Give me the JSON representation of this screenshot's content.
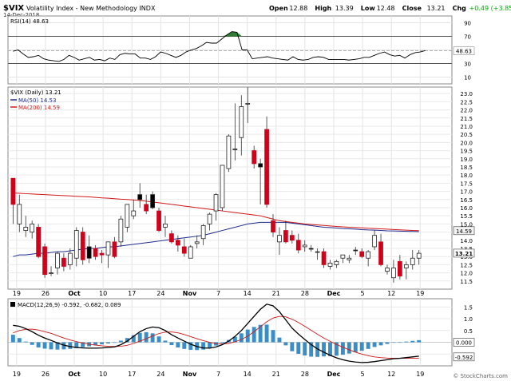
{
  "header": {
    "symbol": "$VIX",
    "name": "Volatility Index - New Methodology",
    "exchange": "INDX",
    "date": "14-Dec-2018",
    "watermark": "© StockCharts.com",
    "quote": {
      "open_label": "Open",
      "open": "12.88",
      "high_label": "High",
      "high": "13.39",
      "low_label": "Low",
      "low": "12.48",
      "close_label": "Close",
      "close": "13.21",
      "chg_label": "Chg",
      "chg": "+0.49 (+3.85%)",
      "chg_color": "#00aa00"
    }
  },
  "colors": {
    "up_candle": "#ffffff",
    "down_candle": "#d0021b",
    "black_candle": "#000000",
    "ma50": "#1f2a8c",
    "ma200": "#d01818",
    "macd_line": "#000000",
    "signal_line": "#d01818",
    "histogram": "#3a8ec8",
    "rsi_line": "#000000",
    "rsi_overbought_fill": "#2e7d32"
  },
  "chart_data": [
    {
      "id": "rsi",
      "type": "line",
      "legend": "RSI(14) 48.63",
      "current_label": "48.63",
      "yticks": [
        "90",
        "70",
        "50",
        "30",
        "10"
      ],
      "ylim": [
        0,
        100
      ],
      "levels": [
        30,
        70
      ],
      "series": [
        {
          "values": [
            48,
            50,
            44,
            39,
            40,
            42,
            37,
            35,
            34,
            33,
            36,
            42,
            39,
            35,
            37,
            39,
            35,
            36,
            34,
            38,
            36,
            43,
            45,
            44,
            44,
            38,
            38,
            36,
            40,
            47,
            45,
            42,
            39,
            42,
            47,
            50,
            52,
            56,
            61,
            60,
            60,
            66,
            72,
            77,
            76,
            50,
            50,
            37,
            38,
            39,
            40,
            38,
            37,
            36,
            35,
            40,
            36,
            35,
            36,
            39,
            40,
            39,
            36,
            36,
            36,
            36,
            35,
            36,
            37,
            39,
            39,
            42,
            45,
            47,
            43,
            41,
            42,
            38,
            43,
            46,
            47,
            49
          ]
        }
      ]
    },
    {
      "id": "price",
      "type": "candlestick",
      "legend": {
        "price": "$VIX (Daily) 13.21",
        "ma50": "MA(50) 14.53",
        "ma200": "MA(200) 14.59"
      },
      "ylim": [
        11,
        23.4
      ],
      "yticks": [
        "23.0",
        "22.5",
        "22.0",
        "21.5",
        "21.0",
        "20.5",
        "20.0",
        "19.5",
        "19.0",
        "18.5",
        "18.0",
        "17.5",
        "17.0",
        "16.5",
        "16.0",
        "15.5",
        "15.0",
        "14.5",
        "14.0",
        "13.5",
        "13.0",
        "12.5",
        "12.0",
        "11.5"
      ],
      "price_badges": [
        "14.59",
        "13.21"
      ],
      "x": [
        "19",
        "26",
        "Oct",
        "10",
        "17",
        "24",
        "Nov",
        "7",
        "14",
        "21",
        "28",
        "Dec",
        "5",
        "12",
        "19"
      ],
      "candles": [
        {
          "o": 16.2,
          "h": 17.8,
          "l": 15.0,
          "c": 17.8,
          "k": "down"
        },
        {
          "o": 16.2,
          "h": 16.8,
          "l": 14.5,
          "c": 15.0,
          "k": "up"
        },
        {
          "o": 14.8,
          "h": 15.5,
          "l": 14.2,
          "c": 14.6,
          "k": "up"
        },
        {
          "o": 15.0,
          "h": 15.2,
          "l": 14.1,
          "c": 14.5,
          "k": "up"
        },
        {
          "o": 14.8,
          "h": 15.0,
          "l": 12.9,
          "c": 13.0,
          "k": "down"
        },
        {
          "o": 13.6,
          "h": 13.8,
          "l": 11.7,
          "c": 11.9,
          "k": "down"
        },
        {
          "o": 12.0,
          "h": 12.4,
          "l": 11.8,
          "c": 12.0,
          "k": "up"
        },
        {
          "o": 12.3,
          "h": 13.3,
          "l": 11.9,
          "c": 13.2,
          "k": "up"
        },
        {
          "o": 12.9,
          "h": 13.2,
          "l": 12.1,
          "c": 12.4,
          "k": "down"
        },
        {
          "o": 12.5,
          "h": 13.5,
          "l": 12.2,
          "c": 13.2,
          "k": "up"
        },
        {
          "o": 12.9,
          "h": 14.8,
          "l": 12.4,
          "c": 14.6,
          "k": "up"
        },
        {
          "o": 14.5,
          "h": 14.8,
          "l": 12.5,
          "c": 12.8,
          "k": "down"
        },
        {
          "o": 12.9,
          "h": 14.3,
          "l": 12.6,
          "c": 13.6,
          "k": "black"
        },
        {
          "o": 13.5,
          "h": 13.7,
          "l": 12.8,
          "c": 13.0,
          "k": "down"
        },
        {
          "o": 13.1,
          "h": 13.4,
          "l": 12.6,
          "c": 13.2,
          "k": "down"
        },
        {
          "o": 13.1,
          "h": 13.9,
          "l": 12.3,
          "c": 13.9,
          "k": "up"
        },
        {
          "o": 13.9,
          "h": 14.2,
          "l": 12.9,
          "c": 13.0,
          "k": "down"
        },
        {
          "o": 13.9,
          "h": 15.5,
          "l": 13.6,
          "c": 15.3,
          "k": "up"
        },
        {
          "o": 14.8,
          "h": 16.2,
          "l": 14.5,
          "c": 16.2,
          "k": "up"
        },
        {
          "o": 15.5,
          "h": 16.5,
          "l": 15.3,
          "c": 15.8,
          "k": "up"
        },
        {
          "o": 16.5,
          "h": 17.5,
          "l": 16.0,
          "c": 16.8,
          "k": "black"
        },
        {
          "o": 16.2,
          "h": 16.8,
          "l": 15.6,
          "c": 15.8,
          "k": "down"
        },
        {
          "o": 16.8,
          "h": 17.0,
          "l": 15.9,
          "c": 16.0,
          "k": "black"
        },
        {
          "o": 15.8,
          "h": 16.0,
          "l": 14.5,
          "c": 14.6,
          "k": "down"
        },
        {
          "o": 14.8,
          "h": 15.5,
          "l": 14.2,
          "c": 15.0,
          "k": "up"
        },
        {
          "o": 14.4,
          "h": 14.6,
          "l": 13.8,
          "c": 13.9,
          "k": "down"
        },
        {
          "o": 14.0,
          "h": 14.3,
          "l": 13.3,
          "c": 13.7,
          "k": "down"
        },
        {
          "o": 13.6,
          "h": 14.1,
          "l": 13.0,
          "c": 13.2,
          "k": "down"
        },
        {
          "o": 12.9,
          "h": 13.7,
          "l": 12.9,
          "c": 13.6,
          "k": "up"
        },
        {
          "o": 13.8,
          "h": 14.3,
          "l": 13.5,
          "c": 13.9,
          "k": "up"
        },
        {
          "o": 14.1,
          "h": 15.0,
          "l": 13.7,
          "c": 14.9,
          "k": "up"
        },
        {
          "o": 15.0,
          "h": 15.7,
          "l": 14.6,
          "c": 15.6,
          "k": "up"
        },
        {
          "o": 15.8,
          "h": 16.9,
          "l": 15.2,
          "c": 16.8,
          "k": "up"
        },
        {
          "o": 16.0,
          "h": 18.6,
          "l": 15.8,
          "c": 18.6,
          "k": "up"
        },
        {
          "o": 18.4,
          "h": 20.5,
          "l": 18.2,
          "c": 20.4,
          "k": "up"
        },
        {
          "o": 19.6,
          "h": 22.4,
          "l": 18.9,
          "c": 19.6,
          "k": "up"
        },
        {
          "o": 20.3,
          "h": 22.9,
          "l": 19.2,
          "c": 22.2,
          "k": "up"
        },
        {
          "o": 22.4,
          "h": 23.4,
          "l": 21.2,
          "c": 22.4,
          "k": "up"
        },
        {
          "o": 19.5,
          "h": 19.8,
          "l": 18.4,
          "c": 18.7,
          "k": "down"
        },
        {
          "o": 18.7,
          "h": 19.0,
          "l": 16.2,
          "c": 18.5,
          "k": "black"
        },
        {
          "o": 20.8,
          "h": 21.6,
          "l": 16.0,
          "c": 16.2,
          "k": "down"
        },
        {
          "o": 15.2,
          "h": 15.6,
          "l": 14.2,
          "c": 14.5,
          "k": "down"
        },
        {
          "o": 13.9,
          "h": 14.8,
          "l": 13.1,
          "c": 14.3,
          "k": "up"
        },
        {
          "o": 14.6,
          "h": 15.2,
          "l": 13.8,
          "c": 13.9,
          "k": "down"
        },
        {
          "o": 14.3,
          "h": 14.6,
          "l": 13.8,
          "c": 14.0,
          "k": "down"
        },
        {
          "o": 14.0,
          "h": 14.4,
          "l": 13.2,
          "c": 13.4,
          "k": "down"
        },
        {
          "o": 13.6,
          "h": 14.0,
          "l": 13.3,
          "c": 13.7,
          "k": "up"
        },
        {
          "o": 13.5,
          "h": 13.7,
          "l": 13.3,
          "c": 13.5,
          "k": "black"
        },
        {
          "o": 13.3,
          "h": 13.5,
          "l": 12.8,
          "c": 13.3,
          "k": "up"
        },
        {
          "o": 13.3,
          "h": 13.5,
          "l": 12.3,
          "c": 12.5,
          "k": "down"
        },
        {
          "o": 12.4,
          "h": 12.8,
          "l": 12.2,
          "c": 12.6,
          "k": "up"
        },
        {
          "o": 12.5,
          "h": 12.8,
          "l": 12.3,
          "c": 12.7,
          "k": "up"
        },
        {
          "o": 12.9,
          "h": 13.1,
          "l": 12.6,
          "c": 13.1,
          "k": "up"
        },
        {
          "o": 12.8,
          "h": 13.1,
          "l": 12.6,
          "c": 12.9,
          "k": "up"
        },
        {
          "o": 13.4,
          "h": 13.6,
          "l": 13.1,
          "c": 13.4,
          "k": "black"
        },
        {
          "o": 13.3,
          "h": 13.5,
          "l": 12.9,
          "c": 13.0,
          "k": "down"
        },
        {
          "o": 12.9,
          "h": 13.4,
          "l": 12.4,
          "c": 13.3,
          "k": "up"
        },
        {
          "o": 13.6,
          "h": 14.6,
          "l": 13.4,
          "c": 14.3,
          "k": "up"
        },
        {
          "o": 13.9,
          "h": 14.4,
          "l": 12.4,
          "c": 12.5,
          "k": "down"
        },
        {
          "o": 12.1,
          "h": 12.5,
          "l": 11.9,
          "c": 12.3,
          "k": "up"
        },
        {
          "o": 12.3,
          "h": 12.8,
          "l": 11.4,
          "c": 11.7,
          "k": "up"
        },
        {
          "o": 12.7,
          "h": 13.1,
          "l": 11.6,
          "c": 11.8,
          "k": "down"
        },
        {
          "o": 12.3,
          "h": 12.7,
          "l": 11.6,
          "c": 12.5,
          "k": "up"
        },
        {
          "o": 12.5,
          "h": 13.4,
          "l": 12.2,
          "c": 12.9,
          "k": "up"
        },
        {
          "o": 12.9,
          "h": 13.4,
          "l": 12.5,
          "c": 13.2,
          "k": "up"
        }
      ],
      "ma50": [
        13.0,
        13.1,
        13.1,
        13.15,
        13.2,
        13.2,
        13.25,
        13.3,
        13.3,
        13.35,
        13.4,
        13.45,
        13.5,
        13.5,
        13.55,
        13.6,
        13.6,
        13.65,
        13.7,
        13.75,
        13.8,
        13.85,
        13.9,
        13.95,
        14.0,
        14.05,
        14.1,
        14.15,
        14.2,
        14.25,
        14.3,
        14.4,
        14.5,
        14.6,
        14.7,
        14.8,
        14.9,
        15.0,
        15.05,
        15.1,
        15.1,
        15.1,
        15.1,
        15.1,
        15.05,
        15.0,
        14.95,
        14.9,
        14.85,
        14.8,
        14.78,
        14.75,
        14.72,
        14.7,
        14.68,
        14.65,
        14.63,
        14.62,
        14.6,
        14.58,
        14.57,
        14.56,
        14.55,
        14.54,
        14.53
      ],
      "ma200": [
        16.9,
        16.88,
        16.86,
        16.84,
        16.82,
        16.8,
        16.78,
        16.76,
        16.74,
        16.72,
        16.7,
        16.68,
        16.66,
        16.63,
        16.6,
        16.58,
        16.55,
        16.52,
        16.5,
        16.47,
        16.44,
        16.4,
        16.35,
        16.3,
        16.25,
        16.2,
        16.15,
        16.1,
        16.05,
        16.0,
        15.95,
        15.9,
        15.85,
        15.8,
        15.75,
        15.7,
        15.65,
        15.6,
        15.55,
        15.5,
        15.4,
        15.3,
        15.2,
        15.15,
        15.1,
        15.05,
        15.0,
        14.97,
        14.94,
        14.91,
        14.88,
        14.85,
        14.82,
        14.8,
        14.78,
        14.76,
        14.74,
        14.72,
        14.7,
        14.68,
        14.66,
        14.64,
        14.62,
        14.6,
        14.59
      ]
    },
    {
      "id": "macd",
      "type": "line",
      "legend": "MACD(12,26,9) -0.592, -0.682, 0.089",
      "yticks": [
        "1.5",
        "1.0",
        "0.5",
        "-0.5"
      ],
      "zero_badge": "0.000",
      "low_badge": "-0.592",
      "ylim": [
        -1.0,
        1.85
      ],
      "x": [
        "19",
        "26",
        "Oct",
        "10",
        "17",
        "24",
        "Nov",
        "7",
        "14",
        "21",
        "28",
        "Dec",
        "5",
        "12",
        "19"
      ],
      "macd": [
        0.72,
        0.68,
        0.58,
        0.45,
        0.3,
        0.18,
        0.08,
        -0.03,
        -0.12,
        -0.18,
        -0.22,
        -0.24,
        -0.25,
        -0.25,
        -0.24,
        -0.22,
        -0.2,
        -0.1,
        0.05,
        0.25,
        0.45,
        0.58,
        0.65,
        0.62,
        0.5,
        0.32,
        0.18,
        0.05,
        -0.08,
        -0.18,
        -0.24,
        -0.25,
        -0.2,
        -0.1,
        0.05,
        0.25,
        0.5,
        0.8,
        1.1,
        1.4,
        1.62,
        1.55,
        1.3,
        0.95,
        0.6,
        0.35,
        0.12,
        -0.1,
        -0.28,
        -0.42,
        -0.55,
        -0.66,
        -0.74,
        -0.8,
        -0.84,
        -0.86,
        -0.85,
        -0.82,
        -0.78,
        -0.74,
        -0.7,
        -0.68,
        -0.65,
        -0.62,
        -0.59
      ],
      "signal": [
        0.4,
        0.5,
        0.55,
        0.56,
        0.52,
        0.45,
        0.38,
        0.28,
        0.18,
        0.1,
        0.03,
        -0.03,
        -0.08,
        -0.12,
        -0.15,
        -0.17,
        -0.18,
        -0.17,
        -0.13,
        -0.05,
        0.05,
        0.15,
        0.27,
        0.37,
        0.43,
        0.44,
        0.4,
        0.33,
        0.24,
        0.15,
        0.07,
        0.0,
        -0.06,
        -0.07,
        -0.05,
        0.02,
        0.12,
        0.26,
        0.45,
        0.66,
        0.87,
        1.03,
        1.1,
        1.08,
        0.98,
        0.84,
        0.68,
        0.51,
        0.34,
        0.18,
        0.04,
        -0.09,
        -0.21,
        -0.32,
        -0.42,
        -0.5,
        -0.57,
        -0.62,
        -0.65,
        -0.67,
        -0.68,
        -0.68,
        -0.68,
        -0.68,
        -0.68
      ]
    }
  ]
}
